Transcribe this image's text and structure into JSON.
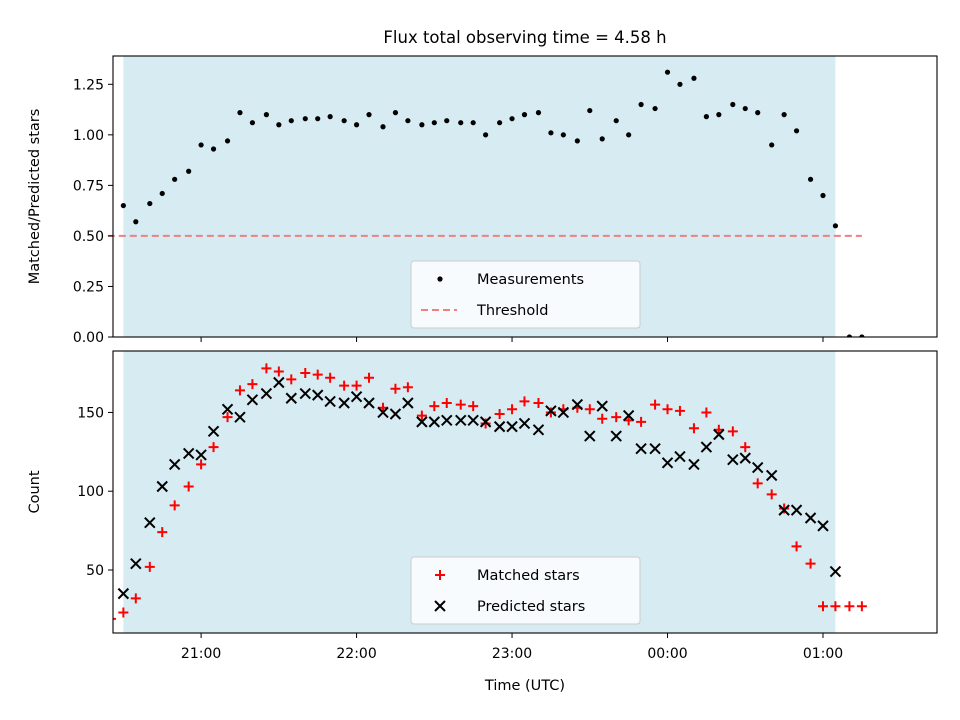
{
  "figure": {
    "title": "Flux total observing time = 4.58 h"
  },
  "chart_data": [
    {
      "type": "scatter",
      "ylabel": "Matched/Predicted stars",
      "xlim": [
        -0.5667,
        4.7333
      ],
      "ylim": [
        0.0,
        1.39
      ],
      "x_ticks": [
        0.0,
        1.0,
        2.0,
        3.0,
        4.0
      ],
      "y_ticks": [
        0.0,
        0.25,
        0.5,
        0.75,
        1.0,
        1.25
      ],
      "y_tick_labels": [
        "0.00",
        "0.25",
        "0.50",
        "0.75",
        "1.00",
        "1.25"
      ],
      "grid": false,
      "legend_position": "lower center",
      "observing_window": {
        "x": [
          -0.5,
          4.08
        ],
        "color": "#add8e6"
      },
      "threshold": {
        "name": "Threshold",
        "y": 0.5,
        "x": [
          -0.6,
          4.25
        ],
        "color": "#f08080"
      },
      "series": [
        {
          "name": "Measurements",
          "color": "#000000",
          "x": [
            -0.58,
            -0.5,
            -0.42,
            -0.33,
            -0.25,
            -0.17,
            -0.08,
            0.0,
            0.08,
            0.17,
            0.25,
            0.33,
            0.42,
            0.5,
            0.58,
            0.67,
            0.75,
            0.83,
            0.92,
            1.0,
            1.08,
            1.17,
            1.25,
            1.33,
            1.42,
            1.5,
            1.58,
            1.67,
            1.75,
            1.83,
            1.92,
            2.0,
            2.08,
            2.17,
            2.25,
            2.33,
            2.42,
            2.5,
            2.58,
            2.67,
            2.75,
            2.83,
            2.92,
            3.0,
            3.08,
            3.17,
            3.25,
            3.33,
            3.42,
            3.5,
            3.58,
            3.67,
            3.75,
            3.83,
            3.92,
            4.0,
            4.08,
            4.17,
            4.25
          ],
          "y": [
            0.0,
            0.65,
            0.57,
            0.66,
            0.71,
            0.78,
            0.82,
            0.95,
            0.93,
            0.97,
            1.11,
            1.06,
            1.1,
            1.05,
            1.07,
            1.08,
            1.08,
            1.09,
            1.07,
            1.05,
            1.1,
            1.04,
            1.11,
            1.07,
            1.05,
            1.06,
            1.07,
            1.06,
            1.06,
            1.0,
            1.06,
            1.08,
            1.1,
            1.11,
            1.01,
            1.0,
            0.97,
            1.12,
            0.98,
            1.07,
            1.0,
            1.15,
            1.13,
            1.31,
            1.25,
            1.28,
            1.09,
            1.1,
            1.15,
            1.13,
            1.11,
            0.95,
            1.1,
            1.02,
            0.78,
            0.7,
            0.55,
            0.0,
            0.0
          ]
        }
      ]
    },
    {
      "type": "scatter",
      "xlabel": "Time (UTC)",
      "ylabel": "Count",
      "xlim": [
        -0.5667,
        4.7333
      ],
      "ylim": [
        10,
        189
      ],
      "x_ticks": [
        0.0,
        1.0,
        2.0,
        3.0,
        4.0
      ],
      "x_tick_labels": [
        "21:00",
        "22:00",
        "23:00",
        "00:00",
        "01:00"
      ],
      "y_ticks": [
        50,
        100,
        150
      ],
      "y_tick_labels": [
        "50",
        "100",
        "150"
      ],
      "grid": false,
      "legend_position": "lower center",
      "observing_window": {
        "x": [
          -0.5,
          4.08
        ],
        "color": "#add8e6"
      },
      "series": [
        {
          "name": "Matched stars",
          "marker": "plus",
          "color": "#ff0000",
          "x": [
            -0.58,
            -0.5,
            -0.42,
            -0.33,
            -0.25,
            -0.17,
            -0.08,
            0.0,
            0.08,
            0.17,
            0.25,
            0.33,
            0.42,
            0.5,
            0.58,
            0.67,
            0.75,
            0.83,
            0.92,
            1.0,
            1.08,
            1.17,
            1.25,
            1.33,
            1.42,
            1.5,
            1.58,
            1.67,
            1.75,
            1.83,
            1.92,
            2.0,
            2.08,
            2.17,
            2.25,
            2.33,
            2.42,
            2.5,
            2.58,
            2.67,
            2.75,
            2.83,
            2.92,
            3.0,
            3.08,
            3.17,
            3.25,
            3.33,
            3.42,
            3.5,
            3.58,
            3.67,
            3.75,
            3.83,
            3.92,
            4.0,
            4.08,
            4.17,
            4.25
          ],
          "y": [
            19,
            23,
            32,
            52,
            74,
            91,
            103,
            117,
            128,
            147,
            164,
            168,
            178,
            176,
            171,
            175,
            174,
            172,
            167,
            167,
            172,
            153,
            165,
            166,
            148,
            154,
            156,
            155,
            154,
            143,
            149,
            152,
            157,
            156,
            150,
            152,
            153,
            152,
            146,
            147,
            145,
            144,
            155,
            152,
            151,
            140,
            150,
            139,
            138,
            128,
            105,
            98,
            89,
            65,
            54,
            27,
            27,
            27,
            27
          ]
        },
        {
          "name": "Predicted stars",
          "marker": "x",
          "color": "#000000",
          "x": [
            -0.5,
            -0.42,
            -0.33,
            -0.25,
            -0.17,
            -0.08,
            0.0,
            0.08,
            0.17,
            0.25,
            0.33,
            0.42,
            0.5,
            0.58,
            0.67,
            0.75,
            0.83,
            0.92,
            1.0,
            1.08,
            1.17,
            1.25,
            1.33,
            1.42,
            1.5,
            1.58,
            1.67,
            1.75,
            1.83,
            1.92,
            2.0,
            2.08,
            2.17,
            2.25,
            2.33,
            2.42,
            2.5,
            2.58,
            2.67,
            2.75,
            2.83,
            2.92,
            3.0,
            3.08,
            3.17,
            3.25,
            3.33,
            3.42,
            3.5,
            3.58,
            3.67,
            3.75,
            3.83,
            3.92,
            4.0,
            4.08
          ],
          "y": [
            35,
            54,
            80,
            103,
            117,
            124,
            123,
            138,
            152,
            147,
            158,
            162,
            169,
            159,
            162,
            161,
            157,
            156,
            160,
            156,
            150,
            149,
            156,
            144,
            144,
            145,
            145,
            145,
            144,
            141,
            141,
            143,
            139,
            151,
            150,
            155,
            135,
            154,
            135,
            148,
            127,
            127,
            118,
            122,
            117,
            128,
            136,
            120,
            121,
            115,
            110,
            88,
            88,
            83,
            78,
            49
          ]
        }
      ]
    }
  ]
}
